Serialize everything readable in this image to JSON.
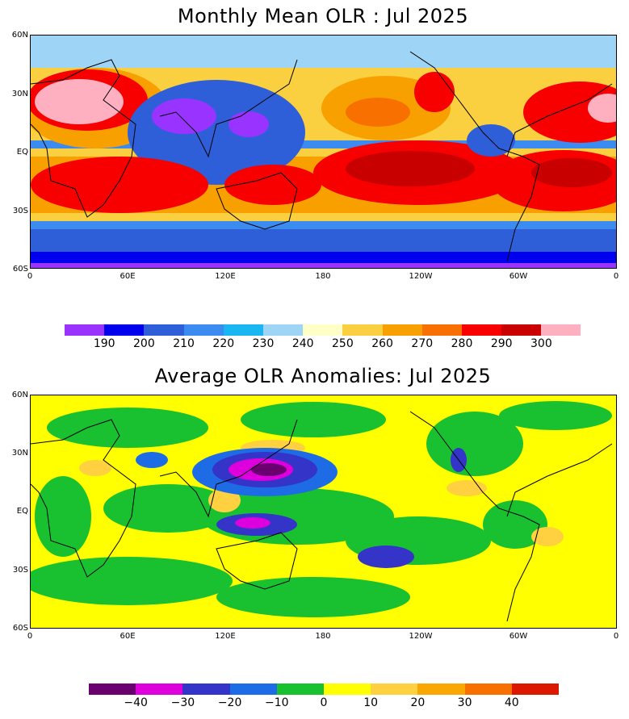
{
  "panels": [
    {
      "title": "Monthly Mean OLR : Jul 2025",
      "colorbar": {
        "colors": [
          "#9933ff",
          "#0000ee",
          "#2f5fd8",
          "#3b8bf0",
          "#19b6f2",
          "#9ed4f6",
          "#ffffc8",
          "#fad040",
          "#f8a000",
          "#f87000",
          "#f80000",
          "#c80000",
          "#ffb0c0"
        ],
        "labels": [
          "190",
          "200",
          "210",
          "220",
          "230",
          "240",
          "250",
          "260",
          "270",
          "280",
          "290",
          "300"
        ]
      }
    },
    {
      "title": "Average OLR Anomalies: Jul 2025",
      "colorbar": {
        "colors": [
          "#6a0070",
          "#dd00dd",
          "#3434c8",
          "#1e6be6",
          "#19c030",
          "#ffff00",
          "#ffd040",
          "#f8a800",
          "#f87000",
          "#dd1800"
        ],
        "labels": [
          "−40",
          "−30",
          "−20",
          "−10",
          "0",
          "10",
          "20",
          "30",
          "40"
        ]
      }
    }
  ],
  "axes": {
    "lat_labels": [
      "60N",
      "30N",
      "EQ",
      "30S",
      "60S"
    ],
    "lon_labels": [
      "0",
      "60E",
      "120E",
      "180",
      "120W",
      "60W",
      "0"
    ]
  }
}
